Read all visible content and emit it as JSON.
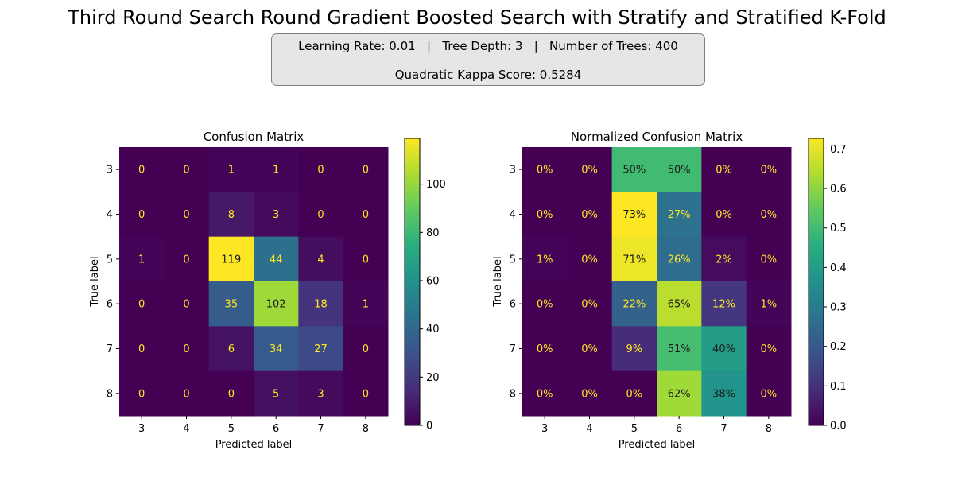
{
  "title": "Third Round Search Round Gradient Boosted Search with Stratify and Stratified K-Fold",
  "info": {
    "line1": "Learning Rate: 0.01   |   Tree Depth: 3   |   Number of Trees: 400",
    "line2": "Quadratic Kappa Score: 0.5284"
  },
  "chart_data": [
    {
      "type": "heatmap",
      "title": "Confusion Matrix",
      "xlabel": "Predicted label",
      "ylabel": "True label",
      "x_ticks": [
        "3",
        "4",
        "5",
        "6",
        "7",
        "8"
      ],
      "y_ticks": [
        "3",
        "4",
        "5",
        "6",
        "7",
        "8"
      ],
      "values": [
        [
          0,
          0,
          1,
          1,
          0,
          0
        ],
        [
          0,
          0,
          8,
          3,
          0,
          0
        ],
        [
          1,
          0,
          119,
          44,
          4,
          0
        ],
        [
          0,
          0,
          35,
          102,
          18,
          1
        ],
        [
          0,
          0,
          6,
          34,
          27,
          0
        ],
        [
          0,
          0,
          0,
          5,
          3,
          0
        ]
      ],
      "colormap": "viridis",
      "vmin": 0,
      "vmax": 119,
      "colorbar_ticks": [
        0,
        20,
        40,
        60,
        80,
        100
      ],
      "colorbar_tick_labels": [
        "0",
        "20",
        "40",
        "60",
        "80",
        "100"
      ]
    },
    {
      "type": "heatmap",
      "title": "Normalized Confusion Matrix",
      "xlabel": "Predicted label",
      "ylabel": "True label",
      "x_ticks": [
        "3",
        "4",
        "5",
        "6",
        "7",
        "8"
      ],
      "y_ticks": [
        "3",
        "4",
        "5",
        "6",
        "7",
        "8"
      ],
      "values": [
        [
          0.0,
          0.0,
          0.5,
          0.5,
          0.0,
          0.0
        ],
        [
          0.0,
          0.0,
          0.727,
          0.273,
          0.0,
          0.0
        ],
        [
          0.006,
          0.0,
          0.708,
          0.262,
          0.024,
          0.0
        ],
        [
          0.0,
          0.0,
          0.224,
          0.654,
          0.115,
          0.006
        ],
        [
          0.0,
          0.0,
          0.09,
          0.507,
          0.403,
          0.0
        ],
        [
          0.0,
          0.0,
          0.0,
          0.625,
          0.375,
          0.0
        ]
      ],
      "cell_labels": [
        [
          "0%",
          "0%",
          "50%",
          "50%",
          "0%",
          "0%"
        ],
        [
          "0%",
          "0%",
          "73%",
          "27%",
          "0%",
          "0%"
        ],
        [
          "1%",
          "0%",
          "71%",
          "26%",
          "2%",
          "0%"
        ],
        [
          "0%",
          "0%",
          "22%",
          "65%",
          "12%",
          "1%"
        ],
        [
          "0%",
          "0%",
          "9%",
          "51%",
          "40%",
          "0%"
        ],
        [
          "0%",
          "0%",
          "0%",
          "62%",
          "38%",
          "0%"
        ]
      ],
      "colormap": "viridis",
      "vmin": 0,
      "vmax": 0.727,
      "colorbar_ticks": [
        0,
        0.1,
        0.2,
        0.3,
        0.4,
        0.5,
        0.6,
        0.7
      ],
      "colorbar_tick_labels": [
        "0.0",
        "0.1",
        "0.2",
        "0.3",
        "0.4",
        "0.5",
        "0.6",
        "0.7"
      ]
    }
  ]
}
